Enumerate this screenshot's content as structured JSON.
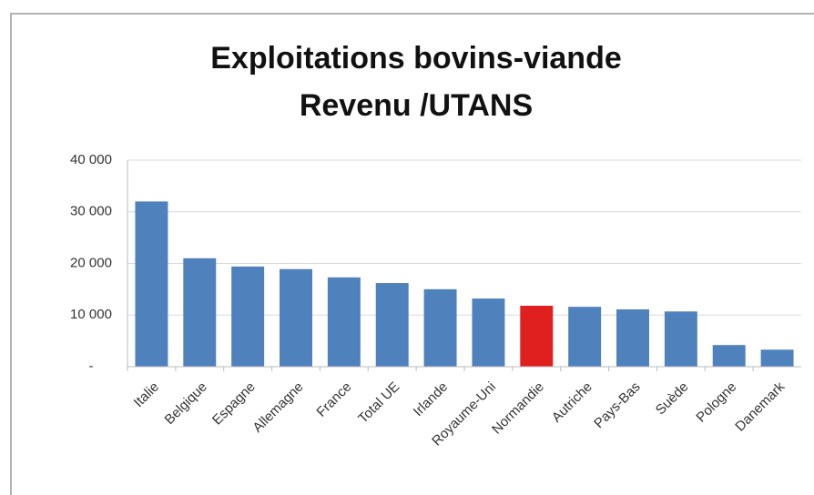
{
  "chart_data": {
    "type": "bar",
    "title": [
      "Exploitations bovins-viande",
      "Revenu /UTANS"
    ],
    "categories": [
      "Italie",
      "Belgique",
      "Espagne",
      "Allemagne",
      "France",
      "Total UE",
      "Irlande",
      "Royaume-Uni",
      "Normandie",
      "Autriche",
      "Pays-Bas",
      "Suède",
      "Pologne",
      "Danemark"
    ],
    "values": [
      32000,
      21000,
      19400,
      18900,
      17300,
      16200,
      15000,
      13200,
      11800,
      11600,
      11100,
      10700,
      4200,
      3300
    ],
    "colors": [
      "#4f81bd",
      "#4f81bd",
      "#4f81bd",
      "#4f81bd",
      "#4f81bd",
      "#4f81bd",
      "#4f81bd",
      "#4f81bd",
      "#e0201f",
      "#4f81bd",
      "#4f81bd",
      "#4f81bd",
      "#4f81bd",
      "#4f81bd"
    ],
    "ylim": [
      0,
      40000
    ],
    "yticks": [
      {
        "value": 0,
        "label": "-"
      },
      {
        "value": 10000,
        "label": "10 000"
      },
      {
        "value": 20000,
        "label": "20 000"
      },
      {
        "value": 30000,
        "label": "30 000"
      },
      {
        "value": 40000,
        "label": "40 000"
      }
    ],
    "grid": true
  }
}
